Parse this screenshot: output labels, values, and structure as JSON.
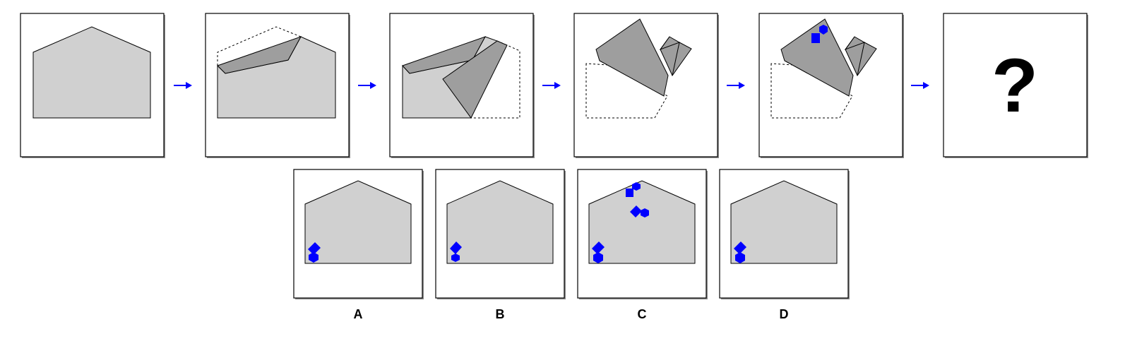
{
  "sequence": {
    "steps": [
      "step-1",
      "step-2",
      "step-3",
      "step-4",
      "step-5"
    ],
    "question_mark": "?"
  },
  "options": [
    {
      "label": "A"
    },
    {
      "label": "B"
    },
    {
      "label": "C"
    },
    {
      "label": "D"
    }
  ],
  "colors": {
    "paper": "#d0d0d0",
    "folded_flap": "#9e9e9e",
    "hole": "#0000ff",
    "arrow": "#0000ff",
    "outline": "#000000",
    "frame_shadow": "#8c8c8c"
  }
}
